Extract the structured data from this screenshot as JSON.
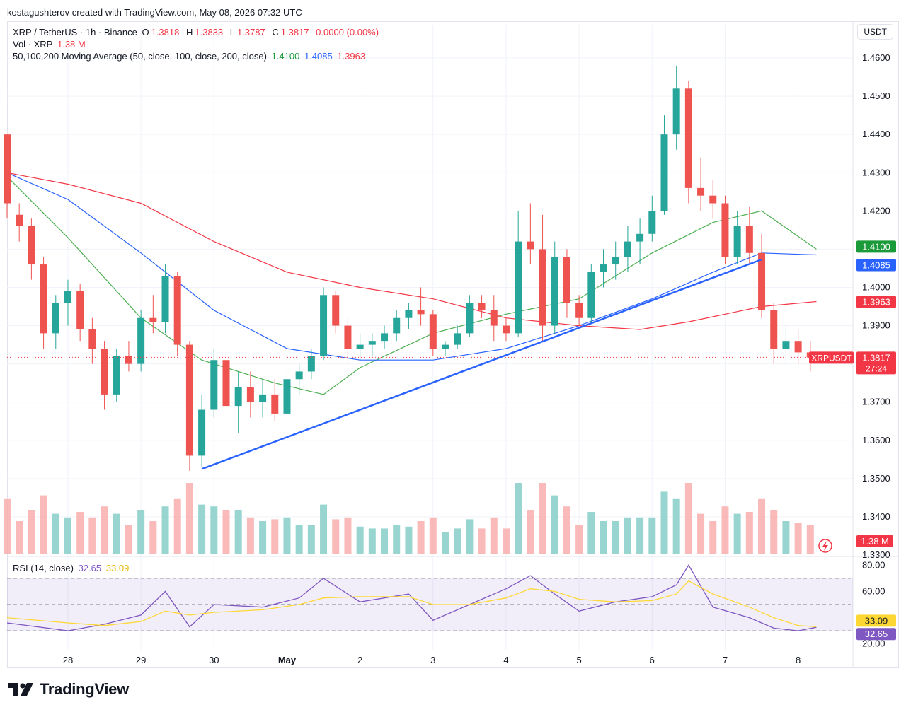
{
  "credit": "kostagushterov created with TradingView.com, May 08, 2026 07:32 UTC",
  "symbol_line": {
    "symbol": "XRP / TetherUS · 1h · Binance",
    "o_label": "O",
    "o_value": "1.3818",
    "h_label": "H",
    "h_value": "1.3833",
    "l_label": "L",
    "l_value": "1.3787",
    "c_label": "C",
    "c_value": "1.3817",
    "change": "0.0000 (0.00%)"
  },
  "vol_line": {
    "label": "Vol · XRP",
    "value": "1.38 M"
  },
  "ma_line": {
    "label": "50,100,200 Moving Average (50, close, 100, close, 200, close)",
    "v50": "1.4100",
    "v100": "1.4085",
    "v200": "1.3963"
  },
  "rsi_line": {
    "label": "RSI (14, close)",
    "rsi": "32.65",
    "ma": "33.09"
  },
  "currency_button": "USDT",
  "price_tag": {
    "symbol": "XRPUSDT",
    "price": "1.3817",
    "countdown": "27:24"
  },
  "volume_tag": "1.38 M",
  "colors": {
    "up": "#26a69a",
    "down": "#ef5350",
    "ma50": "#4caf50",
    "ma100": "#2962ff",
    "ma200": "#f23645",
    "rsi": "#7e57c2",
    "rsi_ma": "#fdd835",
    "trendline": "#2962ff"
  },
  "chart_data": [
    {
      "type": "candlestick",
      "title": "XRP / TetherUS · 1h · Binance",
      "y_axis_ticks": [
        "1.4600",
        "1.4500",
        "1.4400",
        "1.4300",
        "1.4200",
        "1.4100",
        "1.4000",
        "1.3900",
        "1.3800",
        "1.3700",
        "1.3600",
        "1.3500",
        "1.3400",
        "1.3300"
      ],
      "ylim": [
        1.33,
        1.465
      ],
      "x_axis_ticks": [
        "28",
        "29",
        "30",
        "May",
        "2",
        "3",
        "4",
        "5",
        "6",
        "7",
        "8"
      ],
      "xlim": [
        "2026-04-27 04:00",
        "2026-05-08 18:00"
      ],
      "last_price": 1.3817,
      "ohlc_points": [
        {
          "t": "2026-04-27 04:00",
          "o": 1.44,
          "h": 1.44,
          "l": 1.418,
          "c": 1.422
        },
        {
          "t": "2026-04-27 08:00",
          "o": 1.419,
          "h": 1.422,
          "l": 1.412,
          "c": 1.416
        },
        {
          "t": "2026-04-27 12:00",
          "o": 1.416,
          "h": 1.418,
          "l": 1.402,
          "c": 1.406
        },
        {
          "t": "2026-04-27 16:00",
          "o": 1.406,
          "h": 1.408,
          "l": 1.384,
          "c": 1.388
        },
        {
          "t": "2026-04-27 20:00",
          "o": 1.388,
          "h": 1.398,
          "l": 1.384,
          "c": 1.396
        },
        {
          "t": "2026-04-28 00:00",
          "o": 1.396,
          "h": 1.402,
          "l": 1.39,
          "c": 1.399
        },
        {
          "t": "2026-04-28 04:00",
          "o": 1.399,
          "h": 1.401,
          "l": 1.386,
          "c": 1.389
        },
        {
          "t": "2026-04-28 08:00",
          "o": 1.389,
          "h": 1.392,
          "l": 1.38,
          "c": 1.384
        },
        {
          "t": "2026-04-28 12:00",
          "o": 1.384,
          "h": 1.386,
          "l": 1.368,
          "c": 1.372
        },
        {
          "t": "2026-04-28 16:00",
          "o": 1.372,
          "h": 1.384,
          "l": 1.37,
          "c": 1.382
        },
        {
          "t": "2026-04-28 20:00",
          "o": 1.382,
          "h": 1.386,
          "l": 1.378,
          "c": 1.38
        },
        {
          "t": "2026-04-29 00:00",
          "o": 1.38,
          "h": 1.394,
          "l": 1.378,
          "c": 1.392
        },
        {
          "t": "2026-04-29 04:00",
          "o": 1.392,
          "h": 1.398,
          "l": 1.388,
          "c": 1.391
        },
        {
          "t": "2026-04-29 08:00",
          "o": 1.391,
          "h": 1.406,
          "l": 1.388,
          "c": 1.403
        },
        {
          "t": "2026-04-29 12:00",
          "o": 1.403,
          "h": 1.404,
          "l": 1.382,
          "c": 1.385
        },
        {
          "t": "2026-04-29 16:00",
          "o": 1.385,
          "h": 1.386,
          "l": 1.352,
          "c": 1.356
        },
        {
          "t": "2026-04-29 20:00",
          "o": 1.356,
          "h": 1.372,
          "l": 1.353,
          "c": 1.368
        },
        {
          "t": "2026-04-30 00:00",
          "o": 1.368,
          "h": 1.384,
          "l": 1.366,
          "c": 1.381
        },
        {
          "t": "2026-04-30 04:00",
          "o": 1.381,
          "h": 1.382,
          "l": 1.366,
          "c": 1.369
        },
        {
          "t": "2026-04-30 08:00",
          "o": 1.369,
          "h": 1.378,
          "l": 1.362,
          "c": 1.374
        },
        {
          "t": "2026-04-30 12:00",
          "o": 1.374,
          "h": 1.378,
          "l": 1.366,
          "c": 1.37
        },
        {
          "t": "2026-04-30 16:00",
          "o": 1.37,
          "h": 1.376,
          "l": 1.366,
          "c": 1.372
        },
        {
          "t": "2026-04-30 20:00",
          "o": 1.372,
          "h": 1.376,
          "l": 1.365,
          "c": 1.367
        },
        {
          "t": "2026-05-01 00:00",
          "o": 1.367,
          "h": 1.378,
          "l": 1.366,
          "c": 1.376
        },
        {
          "t": "2026-05-01 04:00",
          "o": 1.376,
          "h": 1.38,
          "l": 1.372,
          "c": 1.378
        },
        {
          "t": "2026-05-01 08:00",
          "o": 1.378,
          "h": 1.384,
          "l": 1.376,
          "c": 1.382
        },
        {
          "t": "2026-05-01 12:00",
          "o": 1.382,
          "h": 1.4,
          "l": 1.381,
          "c": 1.398
        },
        {
          "t": "2026-05-01 16:00",
          "o": 1.398,
          "h": 1.399,
          "l": 1.388,
          "c": 1.39
        },
        {
          "t": "2026-05-01 20:00",
          "o": 1.39,
          "h": 1.392,
          "l": 1.38,
          "c": 1.384
        },
        {
          "t": "2026-05-02 00:00",
          "o": 1.384,
          "h": 1.388,
          "l": 1.381,
          "c": 1.385
        },
        {
          "t": "2026-05-02 04:00",
          "o": 1.385,
          "h": 1.388,
          "l": 1.382,
          "c": 1.386
        },
        {
          "t": "2026-05-02 08:00",
          "o": 1.386,
          "h": 1.39,
          "l": 1.384,
          "c": 1.388
        },
        {
          "t": "2026-05-02 12:00",
          "o": 1.388,
          "h": 1.394,
          "l": 1.386,
          "c": 1.392
        },
        {
          "t": "2026-05-02 16:00",
          "o": 1.392,
          "h": 1.396,
          "l": 1.389,
          "c": 1.394
        },
        {
          "t": "2026-05-02 20:00",
          "o": 1.394,
          "h": 1.4,
          "l": 1.39,
          "c": 1.393
        },
        {
          "t": "2026-05-03 00:00",
          "o": 1.393,
          "h": 1.394,
          "l": 1.382,
          "c": 1.384
        },
        {
          "t": "2026-05-03 04:00",
          "o": 1.384,
          "h": 1.386,
          "l": 1.382,
          "c": 1.385
        },
        {
          "t": "2026-05-03 08:00",
          "o": 1.385,
          "h": 1.39,
          "l": 1.384,
          "c": 1.388
        },
        {
          "t": "2026-05-03 12:00",
          "o": 1.388,
          "h": 1.398,
          "l": 1.387,
          "c": 1.396
        },
        {
          "t": "2026-05-03 16:00",
          "o": 1.396,
          "h": 1.398,
          "l": 1.392,
          "c": 1.394
        },
        {
          "t": "2026-05-03 20:00",
          "o": 1.394,
          "h": 1.398,
          "l": 1.386,
          "c": 1.39
        },
        {
          "t": "2026-05-04 00:00",
          "o": 1.39,
          "h": 1.392,
          "l": 1.386,
          "c": 1.388
        },
        {
          "t": "2026-05-04 04:00",
          "o": 1.388,
          "h": 1.42,
          "l": 1.387,
          "c": 1.412
        },
        {
          "t": "2026-05-04 08:00",
          "o": 1.412,
          "h": 1.422,
          "l": 1.406,
          "c": 1.41
        },
        {
          "t": "2026-05-04 12:00",
          "o": 1.41,
          "h": 1.419,
          "l": 1.386,
          "c": 1.39
        },
        {
          "t": "2026-05-04 16:00",
          "o": 1.39,
          "h": 1.412,
          "l": 1.388,
          "c": 1.408
        },
        {
          "t": "2026-05-04 20:00",
          "o": 1.408,
          "h": 1.41,
          "l": 1.392,
          "c": 1.396
        },
        {
          "t": "2026-05-05 00:00",
          "o": 1.396,
          "h": 1.398,
          "l": 1.39,
          "c": 1.392
        },
        {
          "t": "2026-05-05 04:00",
          "o": 1.392,
          "h": 1.406,
          "l": 1.391,
          "c": 1.404
        },
        {
          "t": "2026-05-05 08:00",
          "o": 1.404,
          "h": 1.41,
          "l": 1.4,
          "c": 1.406
        },
        {
          "t": "2026-05-05 12:00",
          "o": 1.406,
          "h": 1.412,
          "l": 1.402,
          "c": 1.408
        },
        {
          "t": "2026-05-05 16:00",
          "o": 1.408,
          "h": 1.416,
          "l": 1.404,
          "c": 1.412
        },
        {
          "t": "2026-05-05 20:00",
          "o": 1.412,
          "h": 1.418,
          "l": 1.406,
          "c": 1.414
        },
        {
          "t": "2026-05-06 00:00",
          "o": 1.414,
          "h": 1.424,
          "l": 1.412,
          "c": 1.42
        },
        {
          "t": "2026-05-06 04:00",
          "o": 1.42,
          "h": 1.445,
          "l": 1.419,
          "c": 1.44
        },
        {
          "t": "2026-05-06 08:00",
          "o": 1.44,
          "h": 1.458,
          "l": 1.436,
          "c": 1.452
        },
        {
          "t": "2026-05-06 12:00",
          "o": 1.452,
          "h": 1.454,
          "l": 1.422,
          "c": 1.426
        },
        {
          "t": "2026-05-06 16:00",
          "o": 1.426,
          "h": 1.434,
          "l": 1.42,
          "c": 1.424
        },
        {
          "t": "2026-05-06 20:00",
          "o": 1.424,
          "h": 1.428,
          "l": 1.418,
          "c": 1.422
        },
        {
          "t": "2026-05-07 00:00",
          "o": 1.422,
          "h": 1.424,
          "l": 1.406,
          "c": 1.408
        },
        {
          "t": "2026-05-07 04:00",
          "o": 1.408,
          "h": 1.42,
          "l": 1.406,
          "c": 1.416
        },
        {
          "t": "2026-05-07 08:00",
          "o": 1.416,
          "h": 1.421,
          "l": 1.406,
          "c": 1.409
        },
        {
          "t": "2026-05-07 12:00",
          "o": 1.409,
          "h": 1.414,
          "l": 1.392,
          "c": 1.394
        },
        {
          "t": "2026-05-07 16:00",
          "o": 1.394,
          "h": 1.396,
          "l": 1.38,
          "c": 1.384
        },
        {
          "t": "2026-05-07 20:00",
          "o": 1.384,
          "h": 1.39,
          "l": 1.38,
          "c": 1.386
        },
        {
          "t": "2026-05-08 00:00",
          "o": 1.386,
          "h": 1.389,
          "l": 1.38,
          "c": 1.383
        },
        {
          "t": "2026-05-08 04:00",
          "o": 1.383,
          "h": 1.386,
          "l": 1.378,
          "c": 1.3817
        }
      ],
      "moving_averages": [
        {
          "name": "MA 50",
          "last": 1.41,
          "points": [
            [
              "2026-04-27 04:00",
              1.429
            ],
            [
              "2026-04-28 00:00",
              1.413
            ],
            [
              "2026-04-29 00:00",
              1.392
            ],
            [
              "2026-04-29 20:00",
              1.381
            ],
            [
              "2026-04-30 20:00",
              1.375
            ],
            [
              "2026-05-01 12:00",
              1.372
            ],
            [
              "2026-05-02 00:00",
              1.379
            ],
            [
              "2026-05-03 00:00",
              1.388
            ],
            [
              "2026-05-04 00:00",
              1.393
            ],
            [
              "2026-05-05 00:00",
              1.397
            ],
            [
              "2026-05-06 00:00",
              1.409
            ],
            [
              "2026-05-06 20:00",
              1.417
            ],
            [
              "2026-05-07 12:00",
              1.42
            ],
            [
              "2026-05-08 06:00",
              1.41
            ]
          ]
        },
        {
          "name": "MA 100",
          "last": 1.4085,
          "points": [
            [
              "2026-04-27 04:00",
              1.43
            ],
            [
              "2026-04-28 00:00",
              1.423
            ],
            [
              "2026-04-29 00:00",
              1.409
            ],
            [
              "2026-04-30 00:00",
              1.394
            ],
            [
              "2026-05-01 00:00",
              1.384
            ],
            [
              "2026-05-02 00:00",
              1.381
            ],
            [
              "2026-05-03 00:00",
              1.381
            ],
            [
              "2026-05-04 00:00",
              1.384
            ],
            [
              "2026-05-05 00:00",
              1.39
            ],
            [
              "2026-05-06 00:00",
              1.397
            ],
            [
              "2026-05-06 20:00",
              1.404
            ],
            [
              "2026-05-07 12:00",
              1.409
            ],
            [
              "2026-05-08 06:00",
              1.4085
            ]
          ]
        },
        {
          "name": "MA 200",
          "last": 1.3963,
          "points": [
            [
              "2026-04-27 04:00",
              1.43
            ],
            [
              "2026-04-28 00:00",
              1.427
            ],
            [
              "2026-04-29 00:00",
              1.422
            ],
            [
              "2026-04-30 00:00",
              1.412
            ],
            [
              "2026-05-01 00:00",
              1.404
            ],
            [
              "2026-05-02 00:00",
              1.4
            ],
            [
              "2026-05-03 00:00",
              1.397
            ],
            [
              "2026-05-04 00:00",
              1.392
            ],
            [
              "2026-05-05 00:00",
              1.39
            ],
            [
              "2026-05-05 20:00",
              1.389
            ],
            [
              "2026-05-06 12:00",
              1.391
            ],
            [
              "2026-05-07 12:00",
              1.395
            ],
            [
              "2026-05-08 06:00",
              1.3963
            ]
          ]
        }
      ],
      "trendline": {
        "from": [
          "2026-04-29 20:00",
          1.3525
        ],
        "to": [
          "2026-05-07 12:00",
          1.4073
        ]
      },
      "volume_last": "1.38 M"
    },
    {
      "type": "line",
      "title": "RSI (14, close)",
      "y_axis_ticks": [
        "80.00",
        "60.00",
        "20.00"
      ],
      "ylim": [
        15,
        85
      ],
      "bands": [
        70,
        50,
        30
      ],
      "x": [
        "2026-04-27 04:00",
        "2026-04-28 00:00",
        "2026-04-28 12:00",
        "2026-04-29 00:00",
        "2026-04-29 08:00",
        "2026-04-29 16:00",
        "2026-04-30 00:00",
        "2026-04-30 16:00",
        "2026-05-01 04:00",
        "2026-05-01 12:00",
        "2026-05-02 00:00",
        "2026-05-02 16:00",
        "2026-05-03 00:00",
        "2026-05-03 12:00",
        "2026-05-04 00:00",
        "2026-05-04 08:00",
        "2026-05-04 16:00",
        "2026-05-05 00:00",
        "2026-05-05 12:00",
        "2026-05-06 00:00",
        "2026-05-06 08:00",
        "2026-05-06 12:00",
        "2026-05-06 20:00",
        "2026-05-07 08:00",
        "2026-05-07 16:00",
        "2026-05-08 00:00",
        "2026-05-08 06:00"
      ],
      "series": [
        {
          "name": "RSI",
          "values": [
            36,
            30,
            35,
            42,
            60,
            33,
            50,
            48,
            55,
            70,
            52,
            58,
            38,
            50,
            62,
            72,
            58,
            45,
            52,
            56,
            65,
            80,
            48,
            40,
            32,
            30,
            32.65
          ]
        },
        {
          "name": "RSI MA",
          "values": [
            40,
            36,
            34,
            37,
            45,
            42,
            44,
            46,
            50,
            55,
            56,
            56,
            50,
            50,
            55,
            62,
            60,
            54,
            52,
            53,
            58,
            68,
            58,
            48,
            40,
            34,
            33.09
          ]
        }
      ]
    }
  ]
}
